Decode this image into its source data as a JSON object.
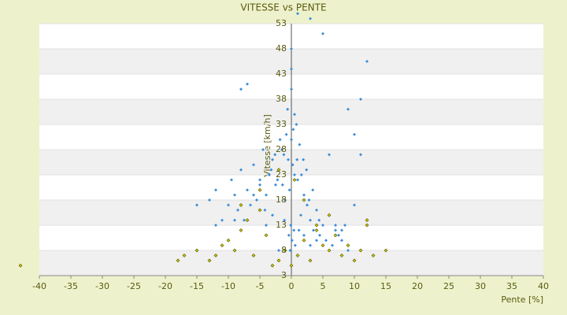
{
  "chart_data": {
    "type": "scatter",
    "title": "VITESSE vs PENTE",
    "x_label": "Pente [%]",
    "y_label": "Vitesse [km/h]",
    "xlim": [
      -40,
      40
    ],
    "xticks": [
      -40,
      -35,
      -30,
      -25,
      -20,
      -15,
      -10,
      -5,
      0,
      5,
      10,
      15,
      20,
      25,
      30,
      35,
      40
    ],
    "ylim": [
      3,
      53
    ],
    "yticks": [
      3,
      8,
      13,
      18,
      23,
      28,
      33,
      38,
      43,
      48,
      53
    ],
    "grid": true,
    "series": [
      {
        "color": "#3b8edb",
        "x": [
          0,
          0.2,
          -0.3,
          0.5,
          -1,
          1,
          -1.5,
          1.5,
          -2,
          2,
          -2.5,
          2.5,
          -3,
          3,
          -3.5,
          3.5,
          -4,
          4,
          -4.5,
          4.5,
          -5,
          5,
          -5.5,
          5.5,
          -6,
          6,
          -6.5,
          6.5,
          -7,
          7,
          -7.5,
          7.5,
          -8,
          8,
          -8.5,
          8.5,
          -9,
          9,
          -9.5,
          10,
          -10,
          -11,
          11,
          -12,
          -13,
          -15,
          0,
          0.3,
          -0.6,
          0.8,
          -1.2,
          1.3,
          -1.8,
          1.9,
          -2.2,
          2.4,
          -0.1,
          0.1,
          -0.4,
          0.6,
          -0.8,
          0.9,
          -1.4,
          1.6,
          -2.6,
          2.8,
          -3.2,
          3.4,
          -4.2,
          4.4,
          1,
          3,
          5,
          12,
          11,
          -8,
          -7,
          9,
          0,
          0,
          -0.2,
          0.4,
          -5,
          -6,
          6,
          7,
          -3,
          3,
          0.5,
          -0.5,
          1.2,
          -1.1,
          2,
          -2,
          -4,
          4,
          8,
          -9,
          10,
          -12
        ],
        "values": [
          30,
          25,
          20,
          35,
          18,
          22,
          28,
          15,
          24,
          19,
          21,
          17,
          26,
          14,
          23,
          12,
          19,
          16,
          28,
          11,
          22,
          13,
          18,
          10,
          25,
          15,
          17,
          9,
          20,
          12,
          14,
          11,
          24,
          10,
          16,
          13,
          19,
          8,
          22,
          31,
          17,
          14,
          27,
          20,
          18,
          17,
          40,
          32,
          36,
          33,
          27,
          29,
          30,
          26,
          22,
          24,
          13,
          10,
          11,
          9,
          31,
          26,
          21,
          23,
          27,
          18,
          24,
          20,
          16,
          14,
          55,
          54,
          51,
          45.5,
          38,
          40,
          41,
          36,
          44,
          48,
          8,
          12,
          21,
          19,
          27,
          13,
          15,
          9,
          23,
          26,
          12,
          14,
          11,
          8,
          13,
          10,
          12,
          14,
          17,
          13
        ]
      },
      {
        "color": "#c8c800",
        "x": [
          -43,
          -18,
          -17,
          -15,
          -13,
          -12,
          -11,
          -10,
          -9,
          -8,
          -7,
          -6,
          -5,
          -4,
          -3,
          -2,
          -1,
          0,
          1,
          2,
          3,
          4,
          5,
          6,
          7,
          8,
          9,
          10,
          11,
          12,
          13,
          15,
          -5,
          -2,
          0.5,
          2,
          4,
          -8,
          6,
          12
        ],
        "values": [
          5,
          6,
          7,
          8,
          6,
          7,
          9,
          10,
          8,
          12,
          14,
          7,
          16,
          11,
          5,
          6,
          8,
          5,
          7,
          10,
          6,
          12,
          9,
          8,
          11,
          7,
          9,
          6,
          8,
          14,
          7,
          8,
          20,
          24,
          22,
          18,
          13,
          17,
          15,
          13
        ]
      }
    ]
  }
}
